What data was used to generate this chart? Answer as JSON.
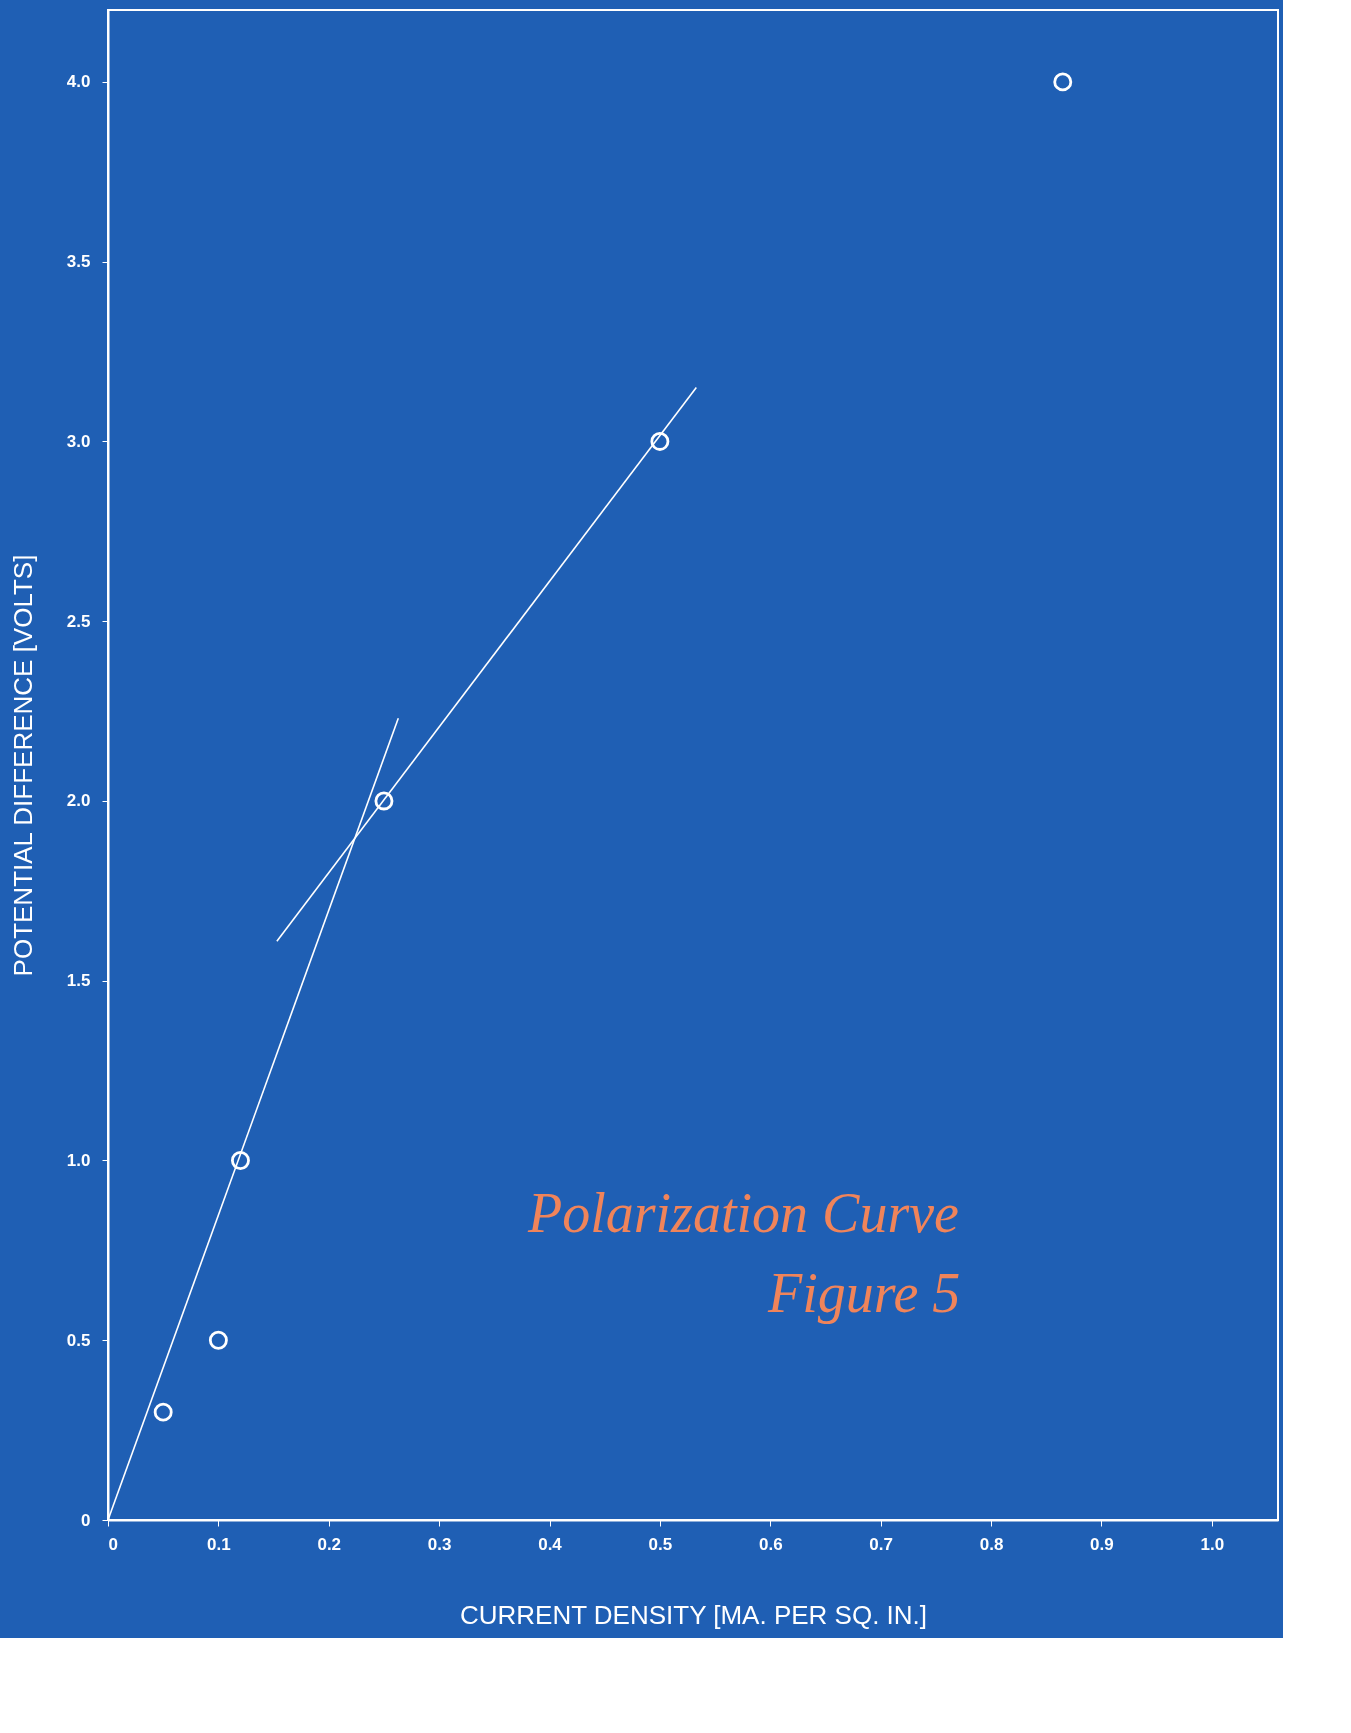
{
  "chart_data": {
    "type": "scatter",
    "xlabel": "CURRENT DENSITY [MA. PER SQ. IN.]",
    "ylabel": "POTENTIAL DIFFERENCE [VOLTS]",
    "annotations": [
      "Polarization Curve",
      "Figure 5"
    ],
    "xlim": [
      0,
      1.06
    ],
    "ylim": [
      0,
      4.2
    ],
    "xticks": [
      0,
      0.1,
      0.2,
      0.3,
      0.4,
      0.5,
      0.6,
      0.7,
      0.8,
      0.9,
      {
        "value": 1,
        "label": "1.0"
      }
    ],
    "yticks": [
      0,
      0.5,
      {
        "value": 1,
        "label": "1.0"
      },
      1.5,
      {
        "value": 2,
        "label": "2.0"
      },
      2.5,
      {
        "value": 3,
        "label": "3.0"
      },
      3.5,
      {
        "value": 4,
        "label": "4.0"
      }
    ],
    "grid": false,
    "marker": "circle",
    "series": [
      {
        "color": "#ffffff",
        "x": [
          0.05,
          0.1,
          0.12,
          0.25,
          0.5,
          0.865
        ],
        "values": [
          0.3,
          0.5,
          1.0,
          2.0,
          3.0,
          4.0
        ]
      },
      {
        "type": "line",
        "marker": "none",
        "line_style": "solid",
        "color": "#ffffff",
        "x": [
          0,
          0.263
        ],
        "values": [
          0,
          2.23
        ]
      },
      {
        "type": "line",
        "marker": "none",
        "line_style": "solid",
        "color": "#ffffff",
        "x": [
          0.153,
          0.533
        ],
        "values": [
          1.61,
          3.15
        ]
      }
    ]
  }
}
